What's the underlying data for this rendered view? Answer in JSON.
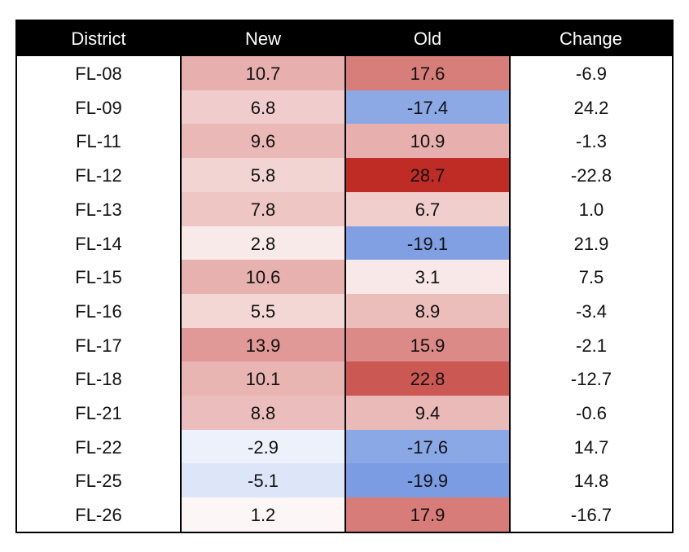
{
  "chart_data": {
    "type": "table",
    "columns": [
      "District",
      "New",
      "Old",
      "Change"
    ],
    "rows": [
      {
        "district": "FL-08",
        "new": "10.7",
        "old": "17.6",
        "change": "-6.9"
      },
      {
        "district": "FL-09",
        "new": "6.8",
        "old": "-17.4",
        "change": "24.2"
      },
      {
        "district": "FL-11",
        "new": "9.6",
        "old": "10.9",
        "change": "-1.3"
      },
      {
        "district": "FL-12",
        "new": "5.8",
        "old": "28.7",
        "change": "-22.8"
      },
      {
        "district": "FL-13",
        "new": "7.8",
        "old": "6.7",
        "change": "1.0"
      },
      {
        "district": "FL-14",
        "new": "2.8",
        "old": "-19.1",
        "change": "21.9"
      },
      {
        "district": "FL-15",
        "new": "10.6",
        "old": "3.1",
        "change": "7.5"
      },
      {
        "district": "FL-16",
        "new": "5.5",
        "old": "8.9",
        "change": "-3.4"
      },
      {
        "district": "FL-17",
        "new": "13.9",
        "old": "15.9",
        "change": "-2.1"
      },
      {
        "district": "FL-18",
        "new": "10.1",
        "old": "22.8",
        "change": "-12.7"
      },
      {
        "district": "FL-21",
        "new": "8.8",
        "old": "9.4",
        "change": "-0.6"
      },
      {
        "district": "FL-22",
        "new": "-2.9",
        "old": "-17.6",
        "change": "14.7"
      },
      {
        "district": "FL-25",
        "new": "-5.1",
        "old": "-19.9",
        "change": "14.8"
      },
      {
        "district": "FL-26",
        "new": "1.2",
        "old": "17.9",
        "change": "-16.7"
      }
    ]
  },
  "colors": {
    "positive": "#be2a24",
    "negative": "#3f6fd6",
    "header_bg": "#000000",
    "header_text": "#ffffff"
  }
}
